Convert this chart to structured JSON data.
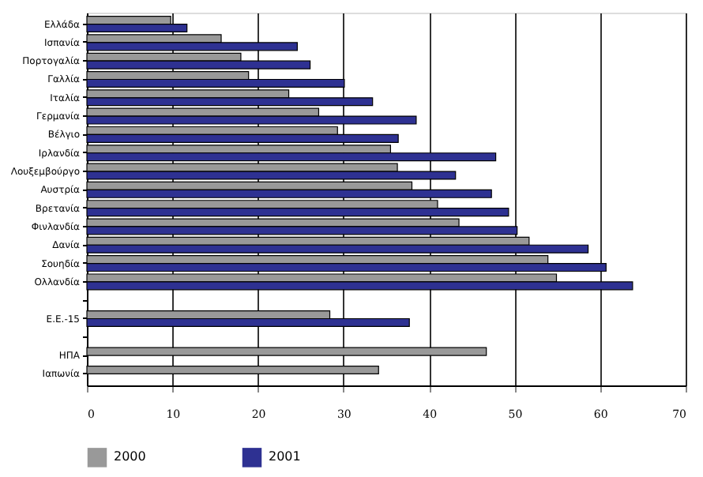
{
  "chart_data": {
    "type": "bar",
    "orientation": "horizontal",
    "categories": [
      "Ελλάδα",
      "Ισπανία",
      "Πορτογαλία",
      "Γαλλία",
      "Ιταλία",
      "Γερμανία",
      "Βέλγιο",
      "Ιρλανδία",
      "Λουξεμβούργο",
      "Αυστρία",
      "Βρετανία",
      "Φινλανδία",
      "Δανία",
      "Σουηδία",
      "Ολλανδία",
      null,
      "Ε.Ε.-15",
      null,
      "ΗΠΑ",
      "Ιαπωνία"
    ],
    "series": [
      {
        "name": "2000",
        "color": "#999999",
        "values": [
          9.8,
          15.7,
          18.0,
          18.9,
          23.6,
          27.1,
          29.3,
          35.5,
          36.3,
          38.0,
          41.0,
          43.5,
          51.7,
          53.9,
          54.9,
          null,
          28.4,
          null,
          46.7,
          34.1
        ]
      },
      {
        "name": "2001",
        "color": "#2e3192",
        "values": [
          11.7,
          24.6,
          26.1,
          30.1,
          33.4,
          38.5,
          36.4,
          47.8,
          43.1,
          47.3,
          49.3,
          50.3,
          58.6,
          60.7,
          63.8,
          null,
          37.7,
          null,
          null,
          null
        ]
      }
    ],
    "xlim": [
      0,
      70
    ],
    "xticks": [
      0,
      10,
      20,
      30,
      40,
      50,
      60,
      70
    ],
    "grid": "x",
    "legend": "bottom"
  }
}
